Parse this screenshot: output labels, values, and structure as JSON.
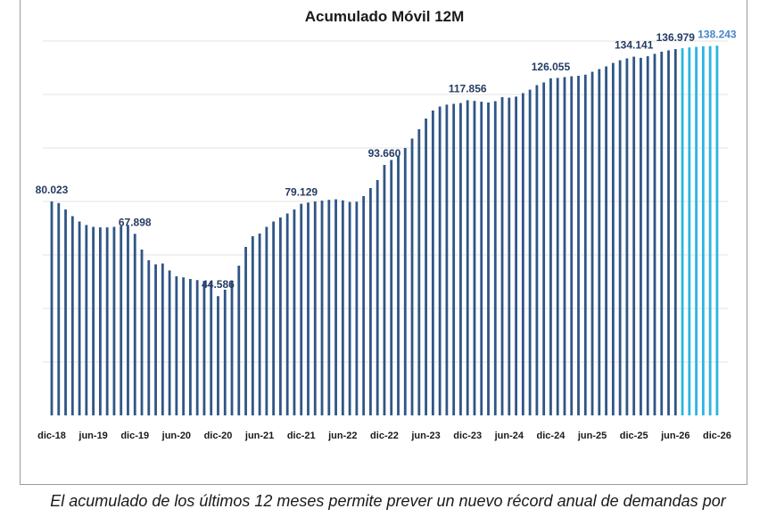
{
  "caption": "El acumulado de los últimos 12 meses permite prever un nuevo récord anual de demandas por",
  "colors": {
    "bar": "#2f5686",
    "forecast": "#2bb5e0",
    "label": "#243b63",
    "forecast_label": "#4a86c8",
    "grid": "#e3e3e3"
  },
  "chart_data": {
    "type": "bar",
    "title": "Acumulado Móvil 12M",
    "xlabel": "",
    "ylabel": "",
    "ylim": [
      0,
      140000
    ],
    "grid": true,
    "legend": "none",
    "tick_labels": [
      "dic-18",
      "jun-19",
      "dic-19",
      "jun-20",
      "dic-20",
      "jun-21",
      "dic-21",
      "jun-22",
      "dic-22",
      "jun-23",
      "dic-23",
      "jun-24",
      "dic-24",
      "jun-25",
      "dic-25",
      "jun-26",
      "dic-26"
    ],
    "data_labels": [
      {
        "index": 0,
        "text": "80.023"
      },
      {
        "index": 12,
        "text": "67.898"
      },
      {
        "index": 24,
        "text": "44.586"
      },
      {
        "index": 36,
        "text": "79.129"
      },
      {
        "index": 48,
        "text": "93.660"
      },
      {
        "index": 60,
        "text": "117.856"
      },
      {
        "index": 72,
        "text": "126.055"
      },
      {
        "index": 84,
        "text": "134.141"
      },
      {
        "index": 90,
        "text": "136.979"
      },
      {
        "index": 96,
        "text": "138.243",
        "forecast": true
      }
    ],
    "forecast_start_index": 91,
    "values": [
      80023,
      79400,
      77000,
      74500,
      72500,
      71200,
      70500,
      70300,
      70300,
      70500,
      70800,
      71200,
      67898,
      62000,
      58000,
      56500,
      56800,
      54200,
      52000,
      51600,
      51000,
      50600,
      50300,
      50200,
      44586,
      47000,
      50000,
      56000,
      63000,
      67000,
      68000,
      70500,
      72500,
      74000,
      75500,
      77000,
      79129,
      79600,
      80000,
      80300,
      80600,
      80800,
      80400,
      79800,
      79900,
      82000,
      85000,
      88000,
      93660,
      95500,
      97000,
      100000,
      103500,
      107000,
      111000,
      114000,
      115500,
      116200,
      116500,
      116800,
      117856,
      117600,
      117300,
      117000,
      117500,
      119000,
      118800,
      119200,
      120500,
      121800,
      123500,
      124500,
      126055,
      126200,
      126500,
      126800,
      127000,
      127400,
      128500,
      129500,
      130500,
      131800,
      132800,
      133500,
      134141,
      133700,
      134300,
      135200,
      136000,
      136500,
      136979,
      137300,
      137600,
      137800,
      138000,
      138100,
      138243
    ]
  }
}
